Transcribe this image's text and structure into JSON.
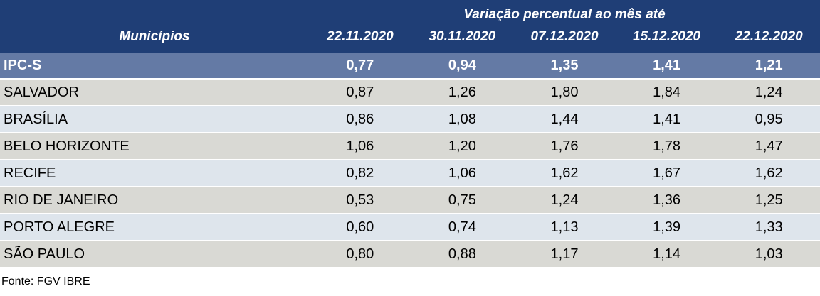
{
  "colors": {
    "header_bg": "#1F3E76",
    "summary_row_bg": "#647AA5",
    "row_gray_bg": "#D9D9D4",
    "row_blue_bg": "#DEE5EC",
    "header_text": "#FFFFFF",
    "body_text": "#000000"
  },
  "table": {
    "title": "Variação percentual ao mês até",
    "municipios_label": "Municípios",
    "date_columns": [
      "22.11.2020",
      "30.11.2020",
      "07.12.2020",
      "15.12.2020",
      "22.12.2020"
    ],
    "summary_row": {
      "label": "IPC-S",
      "values": [
        "0,77",
        "0,94",
        "1,35",
        "1,41",
        "1,21"
      ]
    },
    "rows": [
      {
        "label": "SALVADOR",
        "values": [
          "0,87",
          "1,26",
          "1,80",
          "1,84",
          "1,24"
        ]
      },
      {
        "label": "BRASÍLIA",
        "values": [
          "0,86",
          "1,08",
          "1,44",
          "1,41",
          "0,95"
        ]
      },
      {
        "label": "BELO HORIZONTE",
        "values": [
          "1,06",
          "1,20",
          "1,76",
          "1,78",
          "1,47"
        ]
      },
      {
        "label": "RECIFE",
        "values": [
          "0,82",
          "1,06",
          "1,62",
          "1,67",
          "1,62"
        ]
      },
      {
        "label": "RIO DE JANEIRO",
        "values": [
          "0,53",
          "0,75",
          "1,24",
          "1,36",
          "1,25"
        ]
      },
      {
        "label": "PORTO ALEGRE",
        "values": [
          "0,60",
          "0,74",
          "1,13",
          "1,39",
          "1,33"
        ]
      },
      {
        "label": "SÃO PAULO",
        "values": [
          "0,80",
          "0,88",
          "1,17",
          "1,14",
          "1,03"
        ]
      }
    ]
  },
  "footer": {
    "source": "Fonte: FGV IBRE"
  },
  "chart_data": {
    "type": "table",
    "title": "Variação percentual ao mês até",
    "row_header": "Municípios",
    "columns": [
      "22.11.2020",
      "30.11.2020",
      "07.12.2020",
      "15.12.2020",
      "22.12.2020"
    ],
    "rows": [
      {
        "label": "IPC-S",
        "values": [
          0.77,
          0.94,
          1.35,
          1.41,
          1.21
        ]
      },
      {
        "label": "SALVADOR",
        "values": [
          0.87,
          1.26,
          1.8,
          1.84,
          1.24
        ]
      },
      {
        "label": "BRASÍLIA",
        "values": [
          0.86,
          1.08,
          1.44,
          1.41,
          0.95
        ]
      },
      {
        "label": "BELO HORIZONTE",
        "values": [
          1.06,
          1.2,
          1.76,
          1.78,
          1.47
        ]
      },
      {
        "label": "RECIFE",
        "values": [
          0.82,
          1.06,
          1.62,
          1.67,
          1.62
        ]
      },
      {
        "label": "RIO DE JANEIRO",
        "values": [
          0.53,
          0.75,
          1.24,
          1.36,
          1.25
        ]
      },
      {
        "label": "PORTO ALEGRE",
        "values": [
          0.6,
          0.74,
          1.13,
          1.39,
          1.33
        ]
      },
      {
        "label": "SÃO PAULO",
        "values": [
          0.8,
          0.88,
          1.17,
          1.14,
          1.03
        ]
      }
    ],
    "notes": "Values shown with Brazilian decimal comma; source Fonte: FGV IBRE"
  }
}
